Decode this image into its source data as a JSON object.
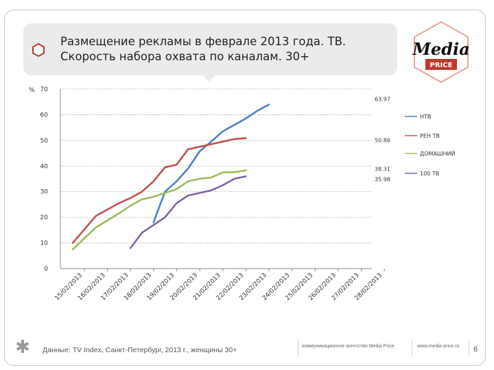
{
  "title": {
    "line1": "Размещение рекламы в феврале 2013 года. ТВ.",
    "line2": "Скорость набора охвата по каналам. 30+"
  },
  "logo": {
    "word": "Media",
    "sub": "PRICE",
    "accent": "#c0392b"
  },
  "footer": {
    "source": "Данные: TV Index, Санкт-Петербург, 2013 г., женщины 30+",
    "agency": "коммуникационное агентство Media Price",
    "url": "www.media-price.ru",
    "page": "6"
  },
  "chart_data": {
    "type": "line",
    "ylabel": "%",
    "ylim": [
      0,
      70
    ],
    "yticks": [
      0,
      10,
      20,
      30,
      40,
      50,
      60,
      70
    ],
    "grid": true,
    "legend_position": "right",
    "categories": [
      "15/02/2013",
      "16/02/2013",
      "17/02/2013",
      "18/02/2013",
      "19/02/2013",
      "20/02/2013",
      "21/02/2013",
      "22/02/2013",
      "23/02/2013",
      "24/02/2013",
      "25/02/2013",
      "26/02/2013",
      "27/02/2013",
      "28/02/2013"
    ],
    "series": [
      {
        "name": "НТВ",
        "color": "#4f81bd",
        "points": [
          [
            3.5,
            18
          ],
          [
            4,
            30
          ],
          [
            4.5,
            34
          ],
          [
            5,
            39
          ],
          [
            5.5,
            45.7
          ],
          [
            6,
            49.5
          ],
          [
            6.5,
            53.5
          ],
          [
            7,
            56
          ],
          [
            7.5,
            58.5
          ],
          [
            8,
            61.5
          ],
          [
            8.5,
            63.97
          ]
        ],
        "end_label": "63.97"
      },
      {
        "name": "РЕН ТВ",
        "color": "#c0504d",
        "points": [
          [
            0,
            10
          ],
          [
            1,
            20.5
          ],
          [
            2,
            25.5
          ],
          [
            2.5,
            27.5
          ],
          [
            3,
            30
          ],
          [
            3.5,
            34
          ],
          [
            4,
            39.5
          ],
          [
            4.5,
            40.5
          ],
          [
            5,
            46.5
          ],
          [
            5.5,
            47.5
          ],
          [
            6,
            48.5
          ],
          [
            6.5,
            49.5
          ],
          [
            7,
            50.5
          ],
          [
            7.5,
            50.86
          ]
        ],
        "end_label": "50.86"
      },
      {
        "name": "ДОМАШНИЙ",
        "color": "#9bbb59",
        "points": [
          [
            0,
            7.5
          ],
          [
            1,
            16
          ],
          [
            2,
            21.5
          ],
          [
            2.5,
            24.5
          ],
          [
            3,
            27
          ],
          [
            3.5,
            28
          ],
          [
            4,
            29.5
          ],
          [
            4.5,
            31
          ],
          [
            5,
            34
          ],
          [
            5.5,
            35
          ],
          [
            6,
            35.5
          ],
          [
            6.5,
            37.5
          ],
          [
            7,
            37.6
          ],
          [
            7.5,
            38.31
          ]
        ],
        "end_label": "38.31"
      },
      {
        "name": "100 ТВ",
        "color": "#8064a2",
        "points": [
          [
            2.5,
            8
          ],
          [
            3,
            14
          ],
          [
            3.5,
            17
          ],
          [
            4,
            20
          ],
          [
            4.5,
            25.5
          ],
          [
            5,
            28.5
          ],
          [
            5.5,
            29.5
          ],
          [
            6,
            30.5
          ],
          [
            6.5,
            32.5
          ],
          [
            7,
            35
          ],
          [
            7.5,
            35.98
          ]
        ],
        "end_label": "35.98"
      }
    ]
  }
}
